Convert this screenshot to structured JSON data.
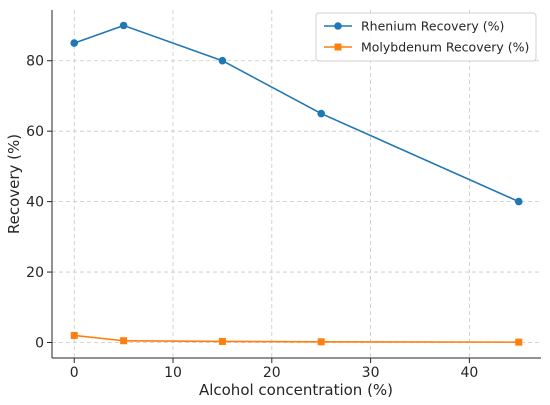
{
  "chart_data": {
    "type": "line",
    "title": "",
    "xlabel": "Alcohol concentration (%)",
    "ylabel": "Recovery (%)",
    "x": [
      0,
      5,
      15,
      25,
      45
    ],
    "xlim": [
      -2.25,
      47.25
    ],
    "ylim": [
      -4.4,
      94.4
    ],
    "xticks": [
      0,
      10,
      20,
      30,
      40
    ],
    "yticks": [
      0,
      20,
      40,
      60,
      80
    ],
    "grid": true,
    "legend_position": "top-right",
    "series": [
      {
        "name": "Rhenium Recovery (%)",
        "values": [
          85,
          90,
          80,
          65,
          40
        ],
        "color": "#1f77b4",
        "marker": "circle"
      },
      {
        "name": "Molybdenum Recovery (%)",
        "values": [
          2,
          0.5,
          0.3,
          0.2,
          0.1
        ],
        "color": "#ff7f0e",
        "marker": "square"
      }
    ]
  }
}
